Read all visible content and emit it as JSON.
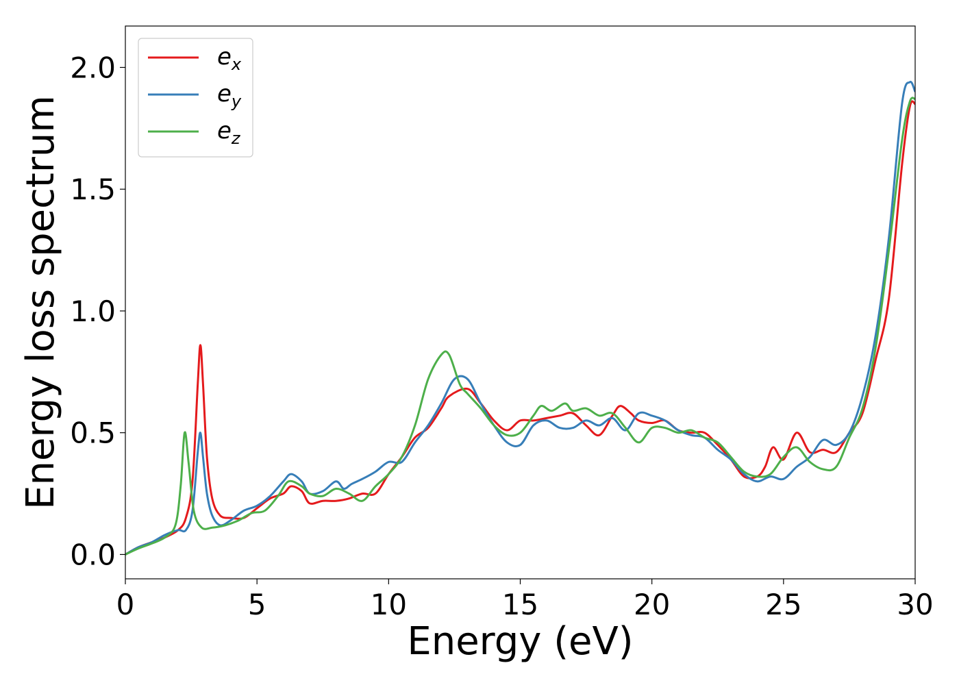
{
  "chart_data": {
    "type": "line",
    "xlabel": "Energy (eV)",
    "ylabel": "Energy loss spectrum",
    "xlim": [
      0,
      30
    ],
    "ylim": [
      -0.1,
      2.17
    ],
    "xticks": [
      0,
      5,
      10,
      15,
      20,
      25,
      30
    ],
    "xtick_labels": [
      "0",
      "5",
      "10",
      "15",
      "20",
      "25",
      "30"
    ],
    "yticks": [
      0.0,
      0.5,
      1.0,
      1.5,
      2.0
    ],
    "ytick_labels": [
      "0.0",
      "0.5",
      "1.0",
      "1.5",
      "2.0"
    ],
    "grid": false,
    "legend_position": "top-left",
    "series": [
      {
        "name_base": "e",
        "name_sub": "x",
        "color": "#e41a1c",
        "points": [
          [
            0,
            0
          ],
          [
            0.5,
            0.03
          ],
          [
            1,
            0.05
          ],
          [
            1.5,
            0.07
          ],
          [
            2,
            0.1
          ],
          [
            2.3,
            0.15
          ],
          [
            2.55,
            0.3
          ],
          [
            2.75,
            0.7
          ],
          [
            2.85,
            0.86
          ],
          [
            2.95,
            0.7
          ],
          [
            3.1,
            0.4
          ],
          [
            3.3,
            0.23
          ],
          [
            3.6,
            0.16
          ],
          [
            4,
            0.15
          ],
          [
            4.5,
            0.15
          ],
          [
            5,
            0.19
          ],
          [
            5.5,
            0.23
          ],
          [
            6,
            0.25
          ],
          [
            6.3,
            0.28
          ],
          [
            6.7,
            0.26
          ],
          [
            7,
            0.21
          ],
          [
            7.5,
            0.22
          ],
          [
            8,
            0.22
          ],
          [
            8.5,
            0.23
          ],
          [
            9,
            0.25
          ],
          [
            9.5,
            0.25
          ],
          [
            10,
            0.33
          ],
          [
            10.5,
            0.4
          ],
          [
            11,
            0.48
          ],
          [
            11.5,
            0.52
          ],
          [
            12,
            0.6
          ],
          [
            12.3,
            0.65
          ],
          [
            13,
            0.68
          ],
          [
            13.5,
            0.62
          ],
          [
            14,
            0.55
          ],
          [
            14.5,
            0.51
          ],
          [
            15,
            0.55
          ],
          [
            15.5,
            0.55
          ],
          [
            16,
            0.56
          ],
          [
            16.5,
            0.57
          ],
          [
            17,
            0.58
          ],
          [
            17.5,
            0.53
          ],
          [
            18,
            0.49
          ],
          [
            18.5,
            0.57
          ],
          [
            18.8,
            0.61
          ],
          [
            19.2,
            0.58
          ],
          [
            19.5,
            0.55
          ],
          [
            20,
            0.54
          ],
          [
            20.5,
            0.55
          ],
          [
            21,
            0.51
          ],
          [
            21.5,
            0.5
          ],
          [
            22,
            0.5
          ],
          [
            22.5,
            0.45
          ],
          [
            23,
            0.39
          ],
          [
            23.5,
            0.32
          ],
          [
            24,
            0.32
          ],
          [
            24.3,
            0.36
          ],
          [
            24.6,
            0.44
          ],
          [
            25,
            0.39
          ],
          [
            25.5,
            0.5
          ],
          [
            26,
            0.42
          ],
          [
            26.5,
            0.43
          ],
          [
            27,
            0.42
          ],
          [
            27.5,
            0.5
          ],
          [
            28,
            0.58
          ],
          [
            28.5,
            0.8
          ],
          [
            29,
            1.05
          ],
          [
            29.5,
            1.6
          ],
          [
            29.8,
            1.84
          ],
          [
            30,
            1.85
          ]
        ]
      },
      {
        "name_base": "e",
        "name_sub": "y",
        "color": "#377eb8",
        "points": [
          [
            0,
            0
          ],
          [
            0.5,
            0.03
          ],
          [
            1,
            0.05
          ],
          [
            1.5,
            0.08
          ],
          [
            2,
            0.1
          ],
          [
            2.3,
            0.1
          ],
          [
            2.55,
            0.18
          ],
          [
            2.75,
            0.42
          ],
          [
            2.85,
            0.5
          ],
          [
            2.95,
            0.4
          ],
          [
            3.1,
            0.25
          ],
          [
            3.3,
            0.16
          ],
          [
            3.6,
            0.12
          ],
          [
            4,
            0.14
          ],
          [
            4.5,
            0.18
          ],
          [
            5,
            0.2
          ],
          [
            5.5,
            0.24
          ],
          [
            6,
            0.3
          ],
          [
            6.3,
            0.33
          ],
          [
            6.7,
            0.3
          ],
          [
            7,
            0.25
          ],
          [
            7.5,
            0.26
          ],
          [
            8,
            0.3
          ],
          [
            8.3,
            0.27
          ],
          [
            8.6,
            0.29
          ],
          [
            9,
            0.31
          ],
          [
            9.5,
            0.34
          ],
          [
            10,
            0.38
          ],
          [
            10.5,
            0.38
          ],
          [
            11,
            0.46
          ],
          [
            11.5,
            0.53
          ],
          [
            12,
            0.62
          ],
          [
            12.5,
            0.72
          ],
          [
            13,
            0.72
          ],
          [
            13.5,
            0.62
          ],
          [
            14,
            0.53
          ],
          [
            14.5,
            0.46
          ],
          [
            15,
            0.45
          ],
          [
            15.5,
            0.53
          ],
          [
            16,
            0.55
          ],
          [
            16.5,
            0.52
          ],
          [
            17,
            0.52
          ],
          [
            17.5,
            0.55
          ],
          [
            18,
            0.53
          ],
          [
            18.5,
            0.56
          ],
          [
            19,
            0.51
          ],
          [
            19.5,
            0.58
          ],
          [
            20,
            0.57
          ],
          [
            20.5,
            0.55
          ],
          [
            21,
            0.51
          ],
          [
            21.5,
            0.49
          ],
          [
            22,
            0.48
          ],
          [
            22.5,
            0.43
          ],
          [
            23,
            0.39
          ],
          [
            23.5,
            0.33
          ],
          [
            24,
            0.3
          ],
          [
            24.5,
            0.32
          ],
          [
            25,
            0.31
          ],
          [
            25.5,
            0.36
          ],
          [
            26,
            0.4
          ],
          [
            26.5,
            0.47
          ],
          [
            27,
            0.45
          ],
          [
            27.5,
            0.5
          ],
          [
            28,
            0.65
          ],
          [
            28.5,
            0.9
          ],
          [
            29,
            1.3
          ],
          [
            29.5,
            1.85
          ],
          [
            29.8,
            1.94
          ],
          [
            30,
            1.9
          ]
        ]
      },
      {
        "name_base": "e",
        "name_sub": "z",
        "color": "#4daf4a",
        "points": [
          [
            0,
            0
          ],
          [
            0.5,
            0.025
          ],
          [
            1,
            0.045
          ],
          [
            1.5,
            0.07
          ],
          [
            1.9,
            0.12
          ],
          [
            2.1,
            0.28
          ],
          [
            2.25,
            0.5
          ],
          [
            2.4,
            0.38
          ],
          [
            2.6,
            0.18
          ],
          [
            2.9,
            0.11
          ],
          [
            3.3,
            0.11
          ],
          [
            3.8,
            0.12
          ],
          [
            4.3,
            0.14
          ],
          [
            4.8,
            0.17
          ],
          [
            5.3,
            0.18
          ],
          [
            5.8,
            0.24
          ],
          [
            6.2,
            0.3
          ],
          [
            6.7,
            0.28
          ],
          [
            7,
            0.25
          ],
          [
            7.5,
            0.24
          ],
          [
            8,
            0.27
          ],
          [
            8.5,
            0.25
          ],
          [
            9,
            0.22
          ],
          [
            9.5,
            0.28
          ],
          [
            10,
            0.33
          ],
          [
            10.5,
            0.4
          ],
          [
            11,
            0.53
          ],
          [
            11.5,
            0.72
          ],
          [
            12,
            0.82
          ],
          [
            12.3,
            0.82
          ],
          [
            12.7,
            0.7
          ],
          [
            13,
            0.66
          ],
          [
            13.5,
            0.6
          ],
          [
            14,
            0.53
          ],
          [
            14.5,
            0.49
          ],
          [
            15,
            0.5
          ],
          [
            15.5,
            0.57
          ],
          [
            15.8,
            0.61
          ],
          [
            16.2,
            0.59
          ],
          [
            16.7,
            0.62
          ],
          [
            17,
            0.59
          ],
          [
            17.5,
            0.6
          ],
          [
            18,
            0.57
          ],
          [
            18.5,
            0.58
          ],
          [
            19,
            0.52
          ],
          [
            19.5,
            0.46
          ],
          [
            20,
            0.52
          ],
          [
            20.5,
            0.52
          ],
          [
            21,
            0.5
          ],
          [
            21.5,
            0.51
          ],
          [
            22,
            0.48
          ],
          [
            22.5,
            0.46
          ],
          [
            23,
            0.4
          ],
          [
            23.5,
            0.34
          ],
          [
            24,
            0.32
          ],
          [
            24.5,
            0.33
          ],
          [
            25,
            0.4
          ],
          [
            25.5,
            0.44
          ],
          [
            26,
            0.38
          ],
          [
            26.5,
            0.35
          ],
          [
            27,
            0.36
          ],
          [
            27.5,
            0.48
          ],
          [
            28,
            0.6
          ],
          [
            28.5,
            0.85
          ],
          [
            29,
            1.25
          ],
          [
            29.5,
            1.7
          ],
          [
            29.8,
            1.86
          ],
          [
            30,
            1.87
          ]
        ]
      }
    ]
  }
}
